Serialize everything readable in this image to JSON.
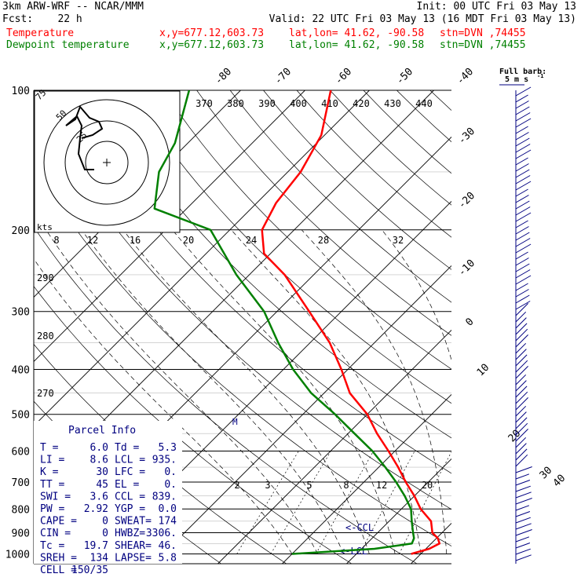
{
  "header": {
    "model": "3km ARW-WRF -- NCAR/MMM",
    "init": "Init: 00 UTC Fri 03 May 13",
    "fcst": "Fcst:    22 h",
    "valid": "Valid: 22 UTC Fri 03 May 13 (16 MDT Fri 03 May 13)",
    "temp_label": "Temperature",
    "dew_label": "Dewpoint temperature",
    "xy": "x,y=677.12,603.73",
    "latlon": "lat,lon= 41.62, -90.58",
    "stn": "stn=DVN ,74455"
  },
  "barb_legend": {
    "title": "Full barb:",
    "value": "5 m s",
    "exp": "-1"
  },
  "colors": {
    "temperature": "#ff0000",
    "dewpoint": "#008000",
    "wind": "#000080",
    "skewt": "#000000"
  },
  "chart_data": {
    "type": "line",
    "title": "",
    "pressure_labels": [
      "100",
      "200",
      "300",
      "400",
      "500",
      "600",
      "700",
      "800",
      "900",
      "1000"
    ],
    "pressure_levels": [
      100,
      200,
      300,
      400,
      500,
      600,
      700,
      800,
      900,
      1000
    ],
    "isotherm_labels": [
      "-80",
      "-70",
      "-60",
      "-50",
      "-40",
      "-30",
      "-20",
      "-10",
      "0",
      "10",
      "20",
      "30",
      "40"
    ],
    "theta_labels": [
      "370",
      "380",
      "390",
      "400",
      "410",
      "420",
      "430",
      "440"
    ],
    "mixing_labels": [
      "2",
      "3",
      "5",
      "8",
      "12",
      "20"
    ],
    "hodo": {
      "kts_label": "kts",
      "speed_labels": [
        "8",
        "12",
        "16",
        "20",
        "24",
        "28",
        "32"
      ],
      "dir_labels": [
        "290",
        "280",
        "270"
      ],
      "ring_labels": [
        "75",
        "50",
        "25"
      ]
    },
    "cape_top_label": "M",
    "ccl_label": "<-CCL",
    "lcl_label": "<-LCL",
    "series": [
      {
        "name": "Temperature",
        "points": [
          [
            1000,
            18.5
          ],
          [
            975,
            20.5
          ],
          [
            950,
            21.3
          ],
          [
            925,
            20.2
          ],
          [
            900,
            18.5
          ],
          [
            850,
            16.5
          ],
          [
            800,
            13.0
          ],
          [
            750,
            10.0
          ],
          [
            700,
            6.5
          ],
          [
            650,
            3.0
          ],
          [
            600,
            -1.0
          ],
          [
            550,
            -5.5
          ],
          [
            500,
            -10.0
          ],
          [
            450,
            -16.0
          ],
          [
            400,
            -21.0
          ],
          [
            350,
            -27.0
          ],
          [
            300,
            -35.0
          ],
          [
            250,
            -44.5
          ],
          [
            225,
            -51.0
          ],
          [
            200,
            -55.0
          ],
          [
            175,
            -57.0
          ],
          [
            150,
            -58.0
          ],
          [
            125,
            -60.5
          ],
          [
            100,
            -66.0
          ]
        ]
      },
      {
        "name": "Dewpoint temperature",
        "points": [
          [
            1000,
            0.0
          ],
          [
            975,
            12.0
          ],
          [
            950,
            17.0
          ],
          [
            925,
            16.5
          ],
          [
            900,
            15.5
          ],
          [
            850,
            13.5
          ],
          [
            800,
            11.5
          ],
          [
            750,
            8.5
          ],
          [
            700,
            5.0
          ],
          [
            650,
            1.0
          ],
          [
            600,
            -3.5
          ],
          [
            550,
            -9.0
          ],
          [
            500,
            -15.0
          ],
          [
            450,
            -22.0
          ],
          [
            400,
            -28.5
          ],
          [
            350,
            -35.0
          ],
          [
            300,
            -42.0
          ],
          [
            250,
            -52.0
          ],
          [
            200,
            -63.0
          ],
          [
            180,
            -75.0
          ],
          [
            150,
            -80.0
          ],
          [
            130,
            -82.0
          ],
          [
            100,
            -88.0
          ]
        ]
      }
    ]
  },
  "parcel_info": {
    "title": "Parcel Info",
    "rows": [
      {
        "l1": "T  =",
        "v1": "6.0",
        "l2": "Td =",
        "v2": "5.3"
      },
      {
        "l1": "LI =",
        "v1": "8.6",
        "l2": "LCL =",
        "v2": "935."
      },
      {
        "l1": "K  =",
        "v1": "30",
        "l2": "LFC =",
        "v2": "0."
      },
      {
        "l1": "TT =",
        "v1": "45",
        "l2": "EL  =",
        "v2": "0."
      },
      {
        "l1": "SWI =",
        "v1": "3.6",
        "l2": "CCL =",
        "v2": "839."
      },
      {
        "l1": "PW =",
        "v1": "2.92",
        "l2": "YGP =",
        "v2": "0.0"
      },
      {
        "l1": "CAPE =",
        "v1": "0",
        "l2": "SWEAT=",
        "v2": "174"
      },
      {
        "l1": "CIN =",
        "v1": "0",
        "l2": "HWBZ=",
        "v2": "3306."
      },
      {
        "l1": "Tc =",
        "v1": "19.7",
        "l2": "SHEAR=",
        "v2": "46."
      },
      {
        "l1": "SREH =",
        "v1": "134",
        "l2": "LAPSE=",
        "v2": "5.8"
      },
      {
        "l1": "CELL =",
        "v1": "150/35",
        "l2": "",
        "v2": ""
      }
    ]
  }
}
